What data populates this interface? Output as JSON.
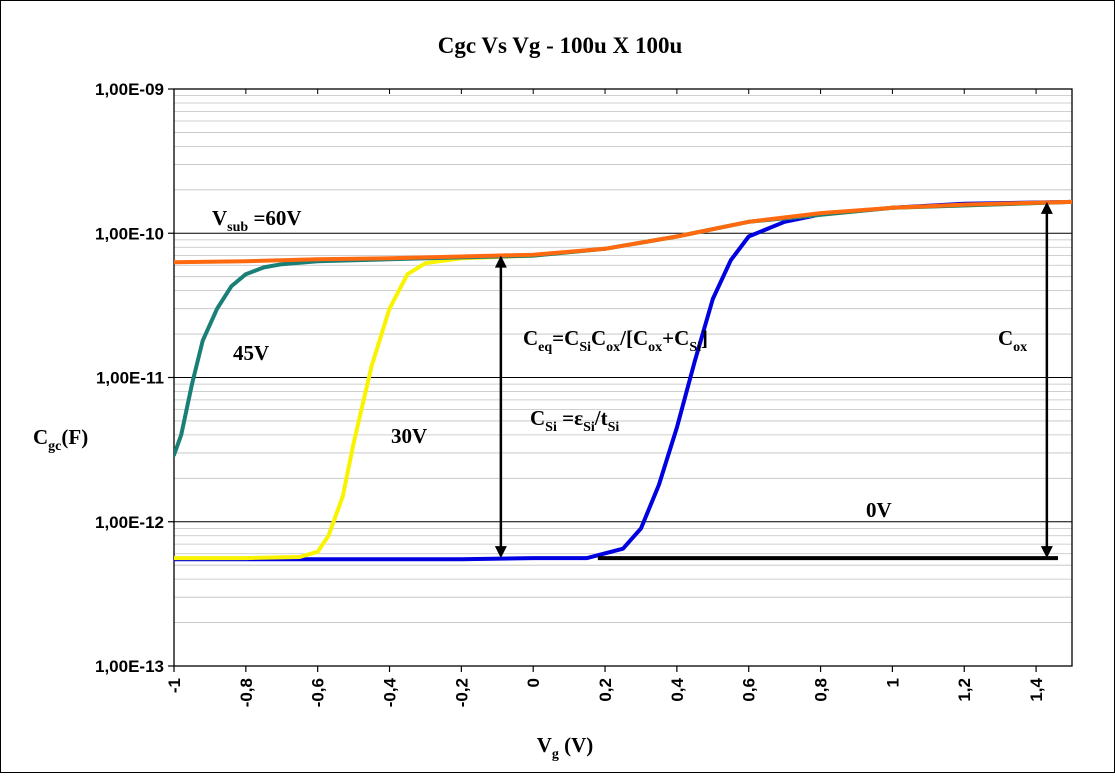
{
  "chart_data": {
    "type": "line",
    "title": "Cgc Vs Vg - 100u X 100u",
    "xlabel": {
      "base": "V",
      "sub": "g",
      "rest": " (V)"
    },
    "ylabel": {
      "base": "C",
      "sub": "gc",
      "rest": "(F)"
    },
    "xlim": [
      -1,
      1.5
    ],
    "ylim": [
      1e-13,
      1e-09
    ],
    "y_scale": "log",
    "grid": true,
    "x_ticks": [
      -1,
      -0.8,
      -0.6,
      -0.4,
      -0.2,
      0,
      0.2,
      0.4,
      0.6,
      0.8,
      1,
      1.2,
      1.4
    ],
    "x_tick_labels": [
      "-1",
      "-0,8",
      "-0,6",
      "-0,4",
      "-0,2",
      "0",
      "0,2",
      "0,4",
      "0,6",
      "0,8",
      "1",
      "1,2",
      "1,4"
    ],
    "y_ticks": [
      1e-13,
      1e-12,
      1e-11,
      1e-10,
      1e-09
    ],
    "y_tick_labels": [
      "1,00E-13",
      "1,00E-12",
      "1,00E-11",
      "1,00E-10",
      "1,00E-09"
    ],
    "series": [
      {
        "name": "0V",
        "color": "#0000e0",
        "x": [
          -1.0,
          -0.8,
          -0.6,
          -0.4,
          -0.2,
          0.0,
          0.15,
          0.25,
          0.3,
          0.35,
          0.4,
          0.45,
          0.5,
          0.55,
          0.6,
          0.7,
          0.8,
          1.0,
          1.2,
          1.5
        ],
        "y": [
          5.5e-13,
          5.5e-13,
          5.5e-13,
          5.5e-13,
          5.5e-13,
          5.6e-13,
          5.6e-13,
          6.5e-13,
          9e-13,
          1.8e-12,
          4.5e-12,
          1.3e-11,
          3.5e-11,
          6.5e-11,
          9.5e-11,
          1.2e-10,
          1.35e-10,
          1.5e-10,
          1.6e-10,
          1.65e-10
        ]
      },
      {
        "name": "30V",
        "color": "#f8f400",
        "x": [
          -1.0,
          -0.8,
          -0.65,
          -0.6,
          -0.57,
          -0.53,
          -0.5,
          -0.45,
          -0.4,
          -0.35,
          -0.3,
          -0.2,
          0.0,
          0.2,
          0.4,
          0.6,
          1.0,
          1.5
        ],
        "y": [
          5.6e-13,
          5.6e-13,
          5.7e-13,
          6.2e-13,
          8e-13,
          1.5e-12,
          3.5e-12,
          1.2e-11,
          3e-11,
          5.2e-11,
          6.2e-11,
          6.7e-11,
          7e-11,
          7.8e-11,
          9.5e-11,
          1.2e-10,
          1.5e-10,
          1.65e-10
        ]
      },
      {
        "name": "45V",
        "color": "#1a7f77",
        "x": [
          -1.0,
          -0.98,
          -0.95,
          -0.92,
          -0.88,
          -0.84,
          -0.8,
          -0.75,
          -0.7,
          -0.6,
          -0.4,
          -0.2,
          0.0,
          0.2,
          0.4,
          0.6,
          1.0,
          1.5
        ],
        "y": [
          2.9e-12,
          4e-12,
          9e-12,
          1.8e-11,
          3e-11,
          4.3e-11,
          5.2e-11,
          5.8e-11,
          6.1e-11,
          6.4e-11,
          6.6e-11,
          6.8e-11,
          7e-11,
          7.8e-11,
          9.5e-11,
          1.2e-10,
          1.5e-10,
          1.65e-10
        ]
      },
      {
        "name": "V_sub =60V",
        "color": "#ff6a10",
        "x": [
          -1.0,
          -0.8,
          -0.6,
          -0.4,
          -0.2,
          0.0,
          0.2,
          0.4,
          0.6,
          0.8,
          1.0,
          1.2,
          1.5
        ],
        "y": [
          6.3e-11,
          6.4e-11,
          6.6e-11,
          6.7e-11,
          6.9e-11,
          7.1e-11,
          7.8e-11,
          9.5e-11,
          1.2e-10,
          1.38e-10,
          1.5e-10,
          1.58e-10,
          1.65e-10
        ]
      }
    ],
    "reference_line": {
      "x": [
        0.18,
        1.5
      ],
      "y": 5.6e-13
    },
    "arrows": [
      {
        "name": "ceq-arrow",
        "x": -0.09,
        "y_from": 5.6e-13,
        "y_to": 7e-11
      },
      {
        "name": "cox-arrow",
        "x": 1.43,
        "y_from": 5.6e-13,
        "y_to": 1.65e-10
      }
    ],
    "annotations": {
      "vsub": {
        "base": "V",
        "sub": "sub",
        "rest": " =60V"
      },
      "v45": "45V",
      "v30": "30V",
      "v0": "0V",
      "ceq": "C_eq=C_Si C_ox/[C_ox+C_Si]",
      "csi": "C_Si =ε_Si/t_Si",
      "cox": "C_ox"
    }
  }
}
